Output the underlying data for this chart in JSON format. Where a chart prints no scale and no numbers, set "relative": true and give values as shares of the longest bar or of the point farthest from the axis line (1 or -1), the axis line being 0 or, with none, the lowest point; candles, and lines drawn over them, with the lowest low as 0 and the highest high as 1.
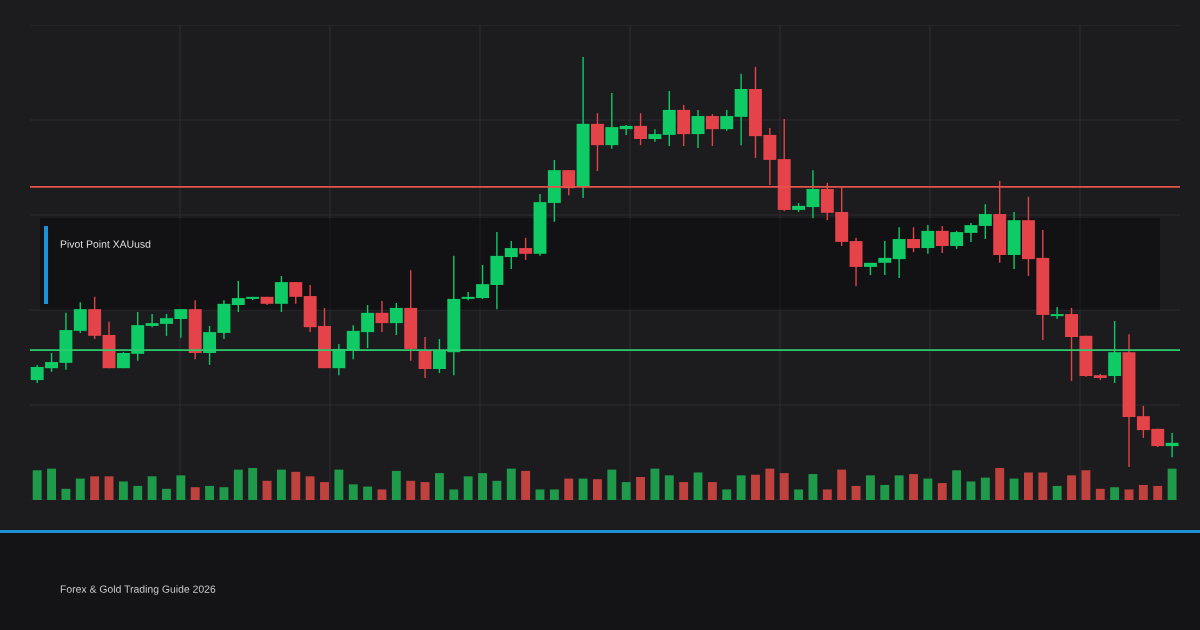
{
  "chart_data": [
    {
      "type": "candlestick",
      "relative": true,
      "categories": [
        null,
        null,
        null,
        null,
        null,
        null,
        null,
        null,
        null,
        null,
        null,
        null,
        null,
        null,
        null,
        null,
        null,
        null,
        null,
        null,
        null,
        null,
        null,
        null,
        null,
        null,
        null,
        null,
        null,
        null,
        null,
        null,
        null,
        null,
        null,
        null,
        null,
        null,
        null,
        null,
        null,
        null,
        null,
        null,
        null,
        null,
        null,
        null,
        null,
        null,
        null,
        null,
        null,
        null,
        null,
        null,
        null,
        null,
        null,
        null,
        null,
        null,
        null,
        null,
        null,
        null,
        null,
        null,
        null,
        null,
        null,
        null,
        null,
        null,
        null,
        null,
        null,
        null,
        null,
        null
      ],
      "colors": [
        "#0fcb66",
        "#0fcb66",
        "#0fcb66",
        "#0fcb66",
        "#e5434a",
        "#e5434a",
        "#0fcb66",
        "#0fcb66",
        "#0fcb66",
        "#0fcb66",
        "#0fcb66",
        "#e5434a",
        "#0fcb66",
        "#0fcb66",
        "#0fcb66",
        "#0fcb66",
        "#e5434a",
        "#0fcb66",
        "#e5434a",
        "#e5434a",
        "#e5434a",
        "#0fcb66",
        "#0fcb66",
        "#0fcb66",
        "#e5434a",
        "#0fcb66",
        "#e5434a",
        "#e5434a",
        "#0fcb66",
        "#0fcb66",
        "#0fcb66",
        "#0fcb66",
        "#0fcb66",
        "#0fcb66",
        "#e5434a",
        "#0fcb66",
        "#0fcb66",
        "#e5434a",
        "#0fcb66",
        "#e5434a",
        "#0fcb66",
        "#0fcb66",
        "#e5434a",
        "#0fcb66",
        "#0fcb66",
        "#e5434a",
        "#0fcb66",
        "#e5434a",
        "#0fcb66",
        "#0fcb66",
        "#e5434a",
        "#e5434a",
        "#e5434a",
        "#0fcb66",
        "#0fcb66",
        "#e5434a",
        "#e5434a",
        "#e5434a",
        "#0fcb66",
        "#0fcb66",
        "#0fcb66",
        "#e5434a",
        "#0fcb66",
        "#e5434a",
        "#0fcb66",
        "#0fcb66",
        "#0fcb66",
        "#e5434a",
        "#0fcb66",
        "#e5434a",
        "#e5434a",
        "#0fcb66",
        "#e5434a",
        "#e5434a",
        "#e5434a",
        "#0fcb66",
        "#e5434a",
        "#e5434a",
        "#e5434a",
        "#0fcb66"
      ],
      "grid": true,
      "annotations": [
        "Pivot Point XAUusd",
        "Forex & Gold Trading Guide 2026"
      ],
      "ref_lines": [
        {
          "axis": "y",
          "value": 0.683,
          "color": "#e5534b"
        },
        {
          "axis": "y",
          "value": 0.285,
          "color": "#2ecc71"
        }
      ],
      "ohlc": [
        [
          0.212,
          0.249,
          0.205,
          0.244
        ],
        [
          0.241,
          0.278,
          0.232,
          0.256
        ],
        [
          0.254,
          0.376,
          0.237,
          0.334
        ],
        [
          0.332,
          0.402,
          0.327,
          0.385
        ],
        [
          0.385,
          0.415,
          0.312,
          0.32
        ],
        [
          0.322,
          0.354,
          0.241,
          0.241
        ],
        [
          0.241,
          0.28,
          0.241,
          0.278
        ],
        [
          0.276,
          0.378,
          0.259,
          0.346
        ],
        [
          0.344,
          0.373,
          0.341,
          0.351
        ],
        [
          0.349,
          0.373,
          0.32,
          0.363
        ],
        [
          0.361,
          0.385,
          0.315,
          0.385
        ],
        [
          0.385,
          0.407,
          0.263,
          0.278
        ],
        [
          0.278,
          0.344,
          0.249,
          0.329
        ],
        [
          0.327,
          0.407,
          0.312,
          0.398
        ],
        [
          0.395,
          0.454,
          0.378,
          0.412
        ],
        [
          0.41,
          0.415,
          0.407,
          0.415
        ],
        [
          0.415,
          0.415,
          0.395,
          0.398
        ],
        [
          0.398,
          0.466,
          0.378,
          0.451
        ],
        [
          0.451,
          0.451,
          0.398,
          0.415
        ],
        [
          0.417,
          0.444,
          0.329,
          0.341
        ],
        [
          0.344,
          0.388,
          0.241,
          0.241
        ],
        [
          0.241,
          0.3,
          0.224,
          0.288
        ],
        [
          0.285,
          0.346,
          0.263,
          0.332
        ],
        [
          0.329,
          0.395,
          0.29,
          0.376
        ],
        [
          0.376,
          0.405,
          0.329,
          0.351
        ],
        [
          0.351,
          0.4,
          0.322,
          0.388
        ],
        [
          0.388,
          0.48,
          0.259,
          0.288
        ],
        [
          0.283,
          0.317,
          0.217,
          0.239
        ],
        [
          0.239,
          0.312,
          0.229,
          0.283
        ],
        [
          0.28,
          0.515,
          0.224,
          0.41
        ],
        [
          0.41,
          0.427,
          0.407,
          0.415
        ],
        [
          0.412,
          0.493,
          0.41,
          0.446
        ],
        [
          0.444,
          0.573,
          0.385,
          0.515
        ],
        [
          0.512,
          0.551,
          0.483,
          0.534
        ],
        [
          0.534,
          0.559,
          0.505,
          0.52
        ],
        [
          0.52,
          0.666,
          0.515,
          0.646
        ],
        [
          0.644,
          0.749,
          0.598,
          0.724
        ],
        [
          0.724,
          0.724,
          0.663,
          0.68
        ],
        [
          0.683,
          1.0,
          0.656,
          0.837
        ],
        [
          0.837,
          0.863,
          0.722,
          0.785
        ],
        [
          0.785,
          0.912,
          0.776,
          0.829
        ],
        [
          0.824,
          0.834,
          0.81,
          0.832
        ],
        [
          0.832,
          0.863,
          0.785,
          0.8
        ],
        [
          0.8,
          0.824,
          0.793,
          0.812
        ],
        [
          0.81,
          0.917,
          0.783,
          0.871
        ],
        [
          0.871,
          0.883,
          0.783,
          0.812
        ],
        [
          0.812,
          0.871,
          0.778,
          0.856
        ],
        [
          0.856,
          0.861,
          0.783,
          0.824
        ],
        [
          0.824,
          0.871,
          0.82,
          0.856
        ],
        [
          0.854,
          0.959,
          0.785,
          0.922
        ],
        [
          0.922,
          0.976,
          0.754,
          0.807
        ],
        [
          0.81,
          0.827,
          0.688,
          0.749
        ],
        [
          0.751,
          0.849,
          0.624,
          0.627
        ],
        [
          0.627,
          0.644,
          0.622,
          0.637
        ],
        [
          0.634,
          0.724,
          0.607,
          0.678
        ],
        [
          0.678,
          0.693,
          0.602,
          0.62
        ],
        [
          0.622,
          0.685,
          0.539,
          0.549
        ],
        [
          0.551,
          0.559,
          0.441,
          0.488
        ],
        [
          0.488,
          0.498,
          0.468,
          0.498
        ],
        [
          0.498,
          0.551,
          0.468,
          0.51
        ],
        [
          0.507,
          0.585,
          0.461,
          0.556
        ],
        [
          0.556,
          0.585,
          0.524,
          0.534
        ],
        [
          0.534,
          0.59,
          0.52,
          0.576
        ],
        [
          0.576,
          0.588,
          0.522,
          0.539
        ],
        [
          0.539,
          0.576,
          0.532,
          0.573
        ],
        [
          0.571,
          0.595,
          0.549,
          0.59
        ],
        [
          0.588,
          0.641,
          0.556,
          0.617
        ],
        [
          0.617,
          0.698,
          0.498,
          0.517
        ],
        [
          0.517,
          0.622,
          0.483,
          0.602
        ],
        [
          0.602,
          0.659,
          0.466,
          0.507
        ],
        [
          0.51,
          0.578,
          0.31,
          0.371
        ],
        [
          0.368,
          0.39,
          0.361,
          0.373
        ],
        [
          0.373,
          0.388,
          0.21,
          0.317
        ],
        [
          0.32,
          0.32,
          0.22,
          0.222
        ],
        [
          0.224,
          0.227,
          0.212,
          0.217
        ],
        [
          0.222,
          0.356,
          0.205,
          0.28
        ],
        [
          0.28,
          0.324,
          0,
          0.122
        ],
        [
          0.124,
          0.149,
          0.071,
          0.09
        ],
        [
          0.093,
          0.093,
          0.049,
          0.051
        ],
        [
          0.051,
          0.083,
          0.024,
          0.059
        ]
      ]
    },
    {
      "type": "bar",
      "relative": true,
      "categories": [
        null,
        null,
        null,
        null,
        null,
        null,
        null,
        null,
        null,
        null,
        null,
        null,
        null,
        null,
        null,
        null,
        null,
        null,
        null,
        null,
        null,
        null,
        null,
        null,
        null,
        null,
        null,
        null,
        null,
        null,
        null,
        null,
        null,
        null,
        null,
        null,
        null,
        null,
        null,
        null,
        null,
        null,
        null,
        null,
        null,
        null,
        null,
        null,
        null,
        null,
        null,
        null,
        null,
        null,
        null,
        null,
        null,
        null,
        null,
        null,
        null,
        null,
        null,
        null,
        null,
        null,
        null,
        null,
        null,
        null,
        null,
        null,
        null,
        null,
        null,
        null,
        null,
        null,
        null,
        null
      ],
      "values": [
        0.93,
        0.98,
        0.35,
        0.67,
        0.74,
        0.74,
        0.58,
        0.44,
        0.74,
        0.35,
        0.77,
        0.4,
        0.44,
        0.4,
        0.95,
        1.0,
        0.6,
        0.95,
        0.88,
        0.74,
        0.56,
        0.95,
        0.49,
        0.42,
        0.33,
        0.91,
        0.6,
        0.56,
        0.84,
        0.33,
        0.74,
        0.84,
        0.6,
        0.98,
        0.91,
        0.33,
        0.33,
        0.67,
        0.67,
        0.65,
        0.95,
        0.56,
        0.72,
        0.98,
        0.77,
        0.56,
        0.86,
        0.56,
        0.33,
        0.77,
        0.79,
        0.98,
        0.84,
        0.33,
        0.81,
        0.33,
        0.95,
        0.44,
        0.77,
        0.47,
        0.77,
        0.81,
        0.67,
        0.53,
        0.93,
        0.58,
        0.7,
        1.0,
        0.67,
        0.86,
        0.86,
        0.44,
        0.77,
        0.93,
        0.35,
        0.4,
        0.33,
        0.47,
        0.44,
        0.98
      ],
      "colors": [
        "#1f9a4a",
        "#1f9a4a",
        "#1f9a4a",
        "#1f9a4a",
        "#c0423f",
        "#c0423f",
        "#1f9a4a",
        "#1f9a4a",
        "#1f9a4a",
        "#1f9a4a",
        "#1f9a4a",
        "#c0423f",
        "#1f9a4a",
        "#1f9a4a",
        "#1f9a4a",
        "#1f9a4a",
        "#c0423f",
        "#1f9a4a",
        "#c0423f",
        "#c0423f",
        "#c0423f",
        "#1f9a4a",
        "#1f9a4a",
        "#1f9a4a",
        "#c0423f",
        "#1f9a4a",
        "#c0423f",
        "#c0423f",
        "#1f9a4a",
        "#1f9a4a",
        "#1f9a4a",
        "#1f9a4a",
        "#1f9a4a",
        "#1f9a4a",
        "#c0423f",
        "#1f9a4a",
        "#1f9a4a",
        "#c0423f",
        "#1f9a4a",
        "#c0423f",
        "#1f9a4a",
        "#1f9a4a",
        "#c0423f",
        "#1f9a4a",
        "#1f9a4a",
        "#c0423f",
        "#1f9a4a",
        "#c0423f",
        "#1f9a4a",
        "#1f9a4a",
        "#c0423f",
        "#c0423f",
        "#c0423f",
        "#1f9a4a",
        "#1f9a4a",
        "#c0423f",
        "#c0423f",
        "#c0423f",
        "#1f9a4a",
        "#1f9a4a",
        "#1f9a4a",
        "#c0423f",
        "#1f9a4a",
        "#c0423f",
        "#1f9a4a",
        "#1f9a4a",
        "#1f9a4a",
        "#c0423f",
        "#1f9a4a",
        "#c0423f",
        "#c0423f",
        "#1f9a4a",
        "#c0423f",
        "#c0423f",
        "#c0423f",
        "#1f9a4a",
        "#c0423f",
        "#c0423f",
        "#c0423f",
        "#1f9a4a"
      ]
    }
  ]
}
